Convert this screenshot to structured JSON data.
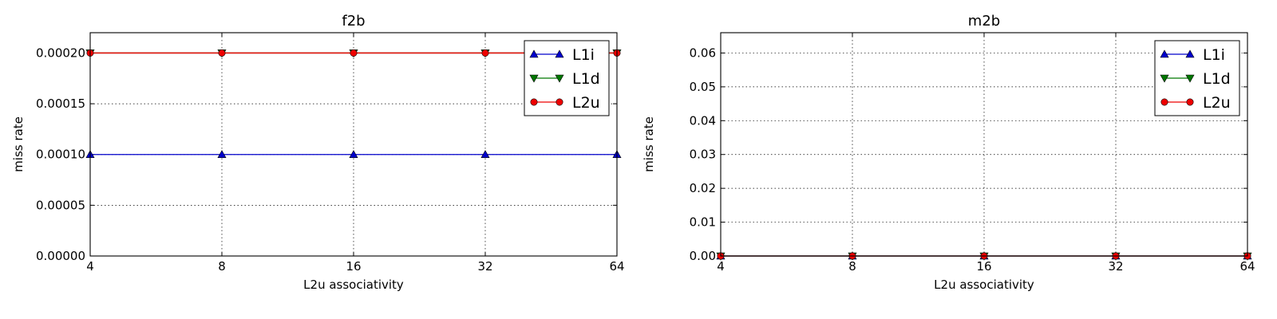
{
  "chart_data": [
    {
      "type": "line",
      "title": "f2b",
      "xlabel": "L2u associativity",
      "ylabel": "miss rate",
      "x": [
        4,
        8,
        16,
        32,
        64
      ],
      "x_scale": "log2",
      "xtick_labels": [
        "4",
        "8",
        "16",
        "32",
        "64"
      ],
      "ylim": [
        0,
        0.00022
      ],
      "yticks": [
        0,
        5e-05,
        0.0001,
        0.00015,
        0.0002
      ],
      "ytick_labels": [
        "0.00000",
        "0.00005",
        "0.00010",
        "0.00015",
        "0.00020"
      ],
      "grid": true,
      "legend_position": "top-right",
      "series": [
        {
          "name": "L1i",
          "marker": "triangle-up",
          "color": "#0000cc",
          "values": [
            0.0001,
            0.0001,
            0.0001,
            0.0001,
            0.0001
          ]
        },
        {
          "name": "L1d",
          "marker": "triangle-down",
          "color": "#007700",
          "values": [
            0.0002,
            0.0002,
            0.0002,
            0.0002,
            0.0002
          ]
        },
        {
          "name": "L2u",
          "marker": "circle",
          "color": "#ee0000",
          "values": [
            0.0002,
            0.0002,
            0.0002,
            0.0002,
            0.0002
          ]
        }
      ]
    },
    {
      "type": "line",
      "title": "m2b",
      "xlabel": "L2u associativity",
      "ylabel": "miss rate",
      "x": [
        4,
        8,
        16,
        32,
        64
      ],
      "x_scale": "log2",
      "xtick_labels": [
        "4",
        "8",
        "16",
        "32",
        "64"
      ],
      "ylim": [
        0,
        0.066
      ],
      "yticks": [
        0,
        0.01,
        0.02,
        0.03,
        0.04,
        0.05,
        0.06
      ],
      "ytick_labels": [
        "0.00",
        "0.01",
        "0.02",
        "0.03",
        "0.04",
        "0.05",
        "0.06"
      ],
      "grid": true,
      "legend_position": "top-right",
      "series": [
        {
          "name": "L1i",
          "marker": "triangle-up",
          "color": "#0000cc",
          "values": [
            0,
            0,
            0,
            0,
            0
          ]
        },
        {
          "name": "L1d",
          "marker": "triangle-down",
          "color": "#007700",
          "values": [
            0,
            0,
            0,
            0,
            0
          ]
        },
        {
          "name": "L2u",
          "marker": "circle",
          "color": "#ee0000",
          "values": [
            0,
            0,
            0,
            0,
            0
          ]
        }
      ]
    }
  ]
}
